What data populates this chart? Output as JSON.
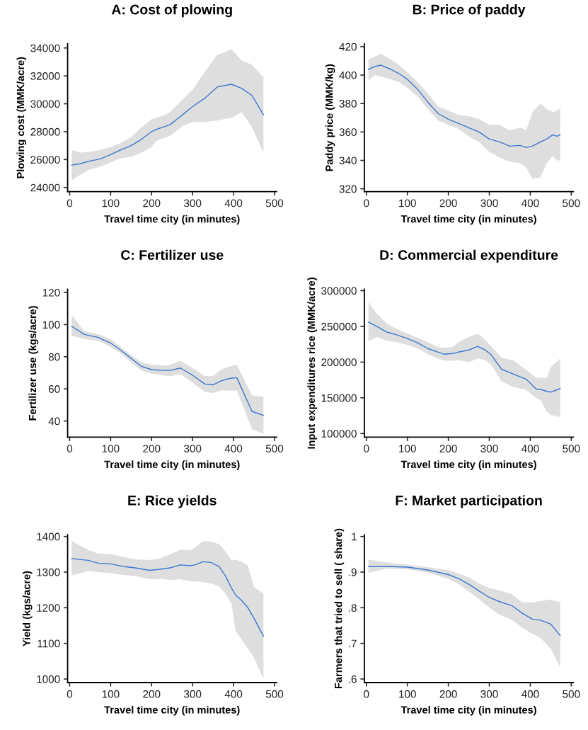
{
  "chart_data": [
    {
      "type": "line",
      "title": "A: Cost of plowing",
      "xlabel": "Travel time city (in minutes)",
      "ylabel": "Plowing cost (MMK/acre)",
      "xlim": [
        -5,
        505
      ],
      "xticks": [
        0,
        100,
        200,
        300,
        400,
        500
      ],
      "ylim": [
        23700,
        34300
      ],
      "yticks": [
        24000,
        26000,
        28000,
        30000,
        32000,
        34000
      ],
      "series": [
        {
          "color": "#3b78d0",
          "x": [
            5,
            25,
            50,
            75,
            100,
            125,
            150,
            175,
            200,
            210,
            225,
            245,
            275,
            300,
            330,
            360,
            395,
            420,
            445,
            473
          ],
          "values": [
            25600,
            25700,
            25900,
            26050,
            26350,
            26700,
            27000,
            27450,
            28000,
            28150,
            28300,
            28500,
            29200,
            29800,
            30400,
            31200,
            31400,
            31100,
            30600,
            29200
          ],
          "lower": [
            24500,
            24900,
            25300,
            25500,
            25800,
            26100,
            26200,
            26500,
            26900,
            27300,
            27500,
            27700,
            28400,
            28700,
            28700,
            28800,
            29000,
            29400,
            28300,
            26500
          ],
          "upper": [
            26700,
            26500,
            26550,
            26700,
            26900,
            27200,
            27600,
            28300,
            28900,
            29000,
            29100,
            29400,
            30300,
            31000,
            32300,
            33500,
            33900,
            33100,
            32800,
            31900
          ]
        }
      ]
    },
    {
      "type": "line",
      "title": "B: Price of paddy",
      "xlabel": "Travel time city (in minutes)",
      "ylabel": "Paddy price (MMK/kg)",
      "xlim": [
        -5,
        505
      ],
      "xticks": [
        0,
        100,
        200,
        300,
        400,
        500
      ],
      "ylim": [
        318,
        422
      ],
      "yticks": [
        320,
        340,
        360,
        380,
        400,
        420
      ],
      "series": [
        {
          "color": "#3b78d0",
          "x": [
            5,
            20,
            35,
            60,
            80,
            100,
            125,
            150,
            175,
            200,
            225,
            250,
            275,
            300,
            325,
            350,
            375,
            390,
            405,
            425,
            440,
            455,
            465,
            473
          ],
          "values": [
            404,
            406,
            407,
            404,
            401,
            397,
            390,
            381,
            373,
            369,
            366,
            363,
            360,
            355,
            353,
            350,
            350.5,
            349,
            350,
            353,
            355,
            358,
            357,
            358
          ],
          "lower": [
            396,
            400,
            399,
            397,
            395,
            391,
            385,
            376,
            368,
            365,
            362,
            357,
            353,
            346,
            342,
            339,
            338,
            335,
            327,
            328,
            338,
            343,
            340,
            340
          ],
          "upper": [
            411,
            413,
            415,
            411,
            407,
            402,
            395,
            387,
            378,
            375,
            372,
            371,
            369,
            365,
            365,
            361,
            363,
            361,
            374,
            380,
            376,
            374,
            375,
            377
          ]
        }
      ]
    },
    {
      "type": "line",
      "title": "C: Fertilizer use",
      "xlabel": "Travel time city (in minutes)",
      "ylabel": "Fertilizer use (kgs/acre)",
      "xlim": [
        -5,
        505
      ],
      "xticks": [
        0,
        100,
        200,
        300,
        400,
        500
      ],
      "ylim": [
        30,
        122
      ],
      "yticks": [
        40,
        60,
        80,
        100,
        120
      ],
      "series": [
        {
          "color": "#3b78d0",
          "x": [
            5,
            35,
            70,
            100,
            125,
            150,
            175,
            200,
            225,
            245,
            270,
            300,
            330,
            350,
            370,
            390,
            408,
            445,
            473
          ],
          "values": [
            99,
            94,
            92,
            88.5,
            84,
            79,
            74,
            72,
            71.5,
            71.5,
            73,
            68.5,
            63,
            62.5,
            65,
            66.5,
            67,
            46,
            43.5
          ],
          "lower": [
            93,
            91,
            90,
            86,
            82,
            76.5,
            71.5,
            69.5,
            68.5,
            68,
            69,
            64,
            58,
            57.5,
            59,
            59,
            59,
            35,
            32
          ],
          "upper": [
            106,
            96,
            94,
            91,
            86,
            81,
            76.5,
            75,
            74.5,
            75,
            77.5,
            73,
            68,
            68,
            72,
            74,
            75,
            56,
            55
          ]
        }
      ]
    },
    {
      "type": "line",
      "title": "D: Commercial expenditure",
      "xlabel": "Travel time city (in minutes)",
      "ylabel": "Input expenditures rice (MMK/acre)",
      "xlim": [
        -5,
        505
      ],
      "xticks": [
        0,
        100,
        200,
        300,
        400,
        500
      ],
      "ylim": [
        95000,
        302000
      ],
      "yticks": [
        100000,
        150000,
        200000,
        250000,
        300000
      ],
      "series": [
        {
          "color": "#3b78d0",
          "x": [
            5,
            25,
            50,
            75,
            100,
            125,
            150,
            175,
            190,
            210,
            225,
            250,
            272,
            290,
            305,
            330,
            360,
            390,
            415,
            425,
            440,
            450,
            473
          ],
          "values": [
            256000,
            250000,
            242000,
            238000,
            233000,
            227000,
            219000,
            214000,
            211000,
            212000,
            214000,
            217000,
            222000,
            217000,
            210000,
            190000,
            183000,
            176000,
            162000,
            162000,
            159000,
            158000,
            163000
          ],
          "lower": [
            229000,
            235000,
            230000,
            228000,
            224000,
            219000,
            211000,
            205000,
            202000,
            202000,
            203000,
            200000,
            205000,
            203000,
            196000,
            173000,
            165000,
            161000,
            149000,
            147000,
            131000,
            126000,
            123000
          ],
          "upper": [
            284000,
            268000,
            254000,
            246000,
            240000,
            234000,
            228000,
            221000,
            220000,
            221000,
            228000,
            235000,
            240000,
            231000,
            222000,
            206000,
            202000,
            189000,
            178000,
            178000,
            177000,
            193000,
            205000
          ]
        }
      ]
    },
    {
      "type": "line",
      "title": "E: Rice yields",
      "xlabel": "Travel time city (in minutes)",
      "ylabel": "Yield (kgs/acre)",
      "xlim": [
        -5,
        505
      ],
      "xticks": [
        0,
        100,
        200,
        300,
        400,
        500
      ],
      "ylim": [
        990,
        1405
      ],
      "yticks": [
        1000,
        1100,
        1200,
        1300,
        1400
      ],
      "series": [
        {
          "color": "#3b78d0",
          "x": [
            5,
            20,
            45,
            70,
            100,
            130,
            160,
            195,
            220,
            245,
            270,
            295,
            305,
            325,
            345,
            365,
            380,
            395,
            405,
            420,
            435,
            450,
            473
          ],
          "values": [
            1338,
            1336,
            1333,
            1325,
            1323,
            1316,
            1312,
            1305,
            1308,
            1312,
            1320,
            1318,
            1320,
            1329,
            1327,
            1315,
            1290,
            1255,
            1236,
            1220,
            1200,
            1170,
            1120
          ],
          "lower": [
            1290,
            1295,
            1303,
            1300,
            1297,
            1292,
            1289,
            1280,
            1281,
            1278,
            1280,
            1274,
            1274,
            1272,
            1268,
            1260,
            1240,
            1210,
            1135,
            1110,
            1085,
            1060,
            1000
          ],
          "upper": [
            1388,
            1378,
            1362,
            1352,
            1350,
            1343,
            1336,
            1334,
            1338,
            1350,
            1362,
            1362,
            1368,
            1387,
            1386,
            1378,
            1358,
            1334,
            1335,
            1330,
            1318,
            1258,
            1240
          ]
        }
      ]
    },
    {
      "type": "line",
      "title": "F: Market participation",
      "xlabel": "Travel time city (in minutes)",
      "ylabel": "Farmers that tried to sell ( share)",
      "xlim": [
        -5,
        505
      ],
      "xticks": [
        0,
        100,
        200,
        300,
        400,
        500
      ],
      "ylim": [
        0.59,
        1.005
      ],
      "yticks": [
        {
          "value": 0.6,
          "label": ".6"
        },
        {
          "value": 0.7,
          "label": ".7"
        },
        {
          "value": 0.8,
          "label": ".8"
        },
        {
          "value": 0.9,
          "label": ".9"
        },
        1
      ],
      "series": [
        {
          "color": "#3b78d0",
          "x": [
            5,
            50,
            100,
            150,
            200,
            225,
            250,
            275,
            300,
            325,
            355,
            380,
            405,
            425,
            450,
            473
          ],
          "values": [
            0.916,
            0.916,
            0.914,
            0.906,
            0.893,
            0.882,
            0.866,
            0.847,
            0.829,
            0.817,
            0.806,
            0.785,
            0.768,
            0.765,
            0.754,
            0.722
          ],
          "lower": [
            0.898,
            0.91,
            0.908,
            0.898,
            0.881,
            0.866,
            0.846,
            0.824,
            0.8,
            0.781,
            0.766,
            0.744,
            0.727,
            0.715,
            0.685,
            0.633
          ],
          "upper": [
            0.935,
            0.927,
            0.921,
            0.914,
            0.905,
            0.896,
            0.885,
            0.868,
            0.855,
            0.849,
            0.838,
            0.815,
            0.815,
            0.819,
            0.823,
            0.815
          ]
        }
      ]
    }
  ]
}
